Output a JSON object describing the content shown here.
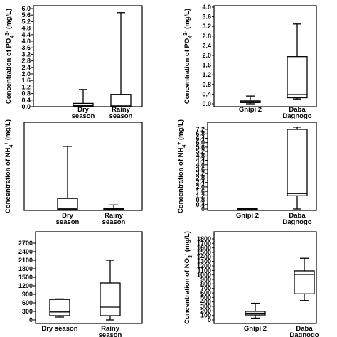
{
  "chart_data": [
    {
      "type": "box",
      "panel": "top-left",
      "ylabel": "Concentration of PO4 3- (mg/L)",
      "ylabel_parts": [
        "Concentration of PO",
        "4",
        "3-",
        " (mg/L)"
      ],
      "ylim": [
        0,
        6.0
      ],
      "ticks": [
        "0.0",
        "0.4",
        "0.8",
        "1.2",
        "1.6",
        "2.0",
        "2.4",
        "2.8",
        "3.2",
        "3.6",
        "4.0",
        "4.4",
        "4.8",
        "5.2",
        "5.6",
        "6.0"
      ],
      "categories": [
        [
          "Dry",
          "season"
        ],
        [
          "Rainy",
          "season"
        ]
      ],
      "boxes": [
        {
          "min": 0.0,
          "q1": 0.05,
          "median": 0.1,
          "q3": 0.2,
          "max": 1.05
        },
        {
          "min": 0.0,
          "q1": 0.0,
          "median": 0.05,
          "q3": 0.75,
          "max": 5.75
        }
      ]
    },
    {
      "type": "box",
      "panel": "top-right",
      "ylabel": "Concentration of PO4 3- (mg/L)",
      "ylabel_parts": [
        "Concentration of PO",
        "4",
        "3-",
        " (mg/L)"
      ],
      "ylim": [
        0,
        4.0
      ],
      "ticks": [
        "0.0",
        "0.4",
        "0.8",
        "1.2",
        "1.6",
        "2.0",
        "2.4",
        "2.8",
        "3.2",
        "3.6",
        "4.0"
      ],
      "categories": [
        [
          "Gnipi 2"
        ],
        [
          "Daba",
          "Dagnogo"
        ]
      ],
      "boxes": [
        {
          "min": 0.0,
          "q1": 0.05,
          "median": 0.08,
          "q3": 0.12,
          "max": 0.32
        },
        {
          "min": 0.2,
          "q1": 0.25,
          "median": 0.38,
          "q3": 1.95,
          "max": 3.3
        }
      ]
    },
    {
      "type": "box",
      "panel": "middle-left",
      "ylabel": "Concentration of NH4 + (mg/L)",
      "ylabel_parts": [
        "Concentration of NH",
        "4",
        "+",
        " (mg/L)"
      ],
      "ylim": [
        0,
        20
      ],
      "ticks": [],
      "categories": [
        [
          "Dry",
          "season"
        ],
        [
          "Rainy",
          "season"
        ]
      ],
      "boxes": [
        {
          "min": 0.0,
          "q1": 0.0,
          "median": 0.2,
          "q3": 2.6,
          "max": 14.6
        },
        {
          "min": 0.0,
          "q1": 0.05,
          "median": 0.15,
          "q3": 0.3,
          "max": 1.1
        }
      ]
    },
    {
      "type": "box",
      "panel": "middle-right",
      "ylabel": "Concentration of NH4 + (mg/L)",
      "ylabel_parts": [
        "Concentration of NH",
        "4",
        "+",
        " (mg/L)"
      ],
      "ylim": [
        0,
        7.2
      ],
      "ticks": [
        "0",
        "0.4",
        "0.8",
        "1.2",
        "1.6",
        "2.0",
        "2.4",
        "2.8",
        "3.2",
        "3.6",
        "4.0",
        "4.4",
        "4.8",
        "5.2",
        "5.6",
        "6.0",
        "6.4",
        "6.8",
        "7.2"
      ],
      "tick_labels": [
        "0",
        "0.4",
        "0.8",
        "1.2",
        "1.6",
        "2.0",
        "2.4",
        "2.8",
        "3.2",
        "3.6",
        "4.0",
        "4.4",
        "4.8",
        "5.2",
        "5.6",
        "6.0",
        "6.4",
        "6.8",
        "7.2"
      ],
      "categories": [
        [
          "Gnipi 2"
        ],
        [
          "Daba",
          "Dagnogo"
        ]
      ],
      "boxes": [
        {
          "min": 0.0,
          "q1": 0.0,
          "median": 0.02,
          "q3": 0.04,
          "max": 0.06
        },
        {
          "min": 0.0,
          "q1": 1.2,
          "median": 1.4,
          "q3": 7.2,
          "max": 7.4
        }
      ]
    },
    {
      "type": "box",
      "panel": "bottom-left",
      "ylabel": "",
      "ylim": [
        0,
        2850
      ],
      "ticks": [
        "0",
        "300",
        "600",
        "900",
        "1200",
        "1500",
        "1800",
        "2100",
        "2400",
        "2700"
      ],
      "categories": [
        [
          "Dry season"
        ],
        [
          "Rainy",
          "season"
        ]
      ],
      "boxes": [
        {
          "min": 100,
          "q1": 150,
          "median": 280,
          "q3": 720,
          "max": 740
        },
        {
          "min": 0,
          "q1": 150,
          "median": 450,
          "q3": 1300,
          "max": 2100
        }
      ]
    },
    {
      "type": "box",
      "panel": "bottom-right",
      "ylabel": "Concentration of NO3 - (mg/L)",
      "ylabel_parts": [
        "Concentration of NO",
        "3",
        "-",
        " (mg/L)"
      ],
      "ylim": [
        0,
        1800
      ],
      "ticks": [
        "0",
        "100",
        "200",
        "300",
        "400",
        "500",
        "600",
        "700",
        "800",
        "900",
        "1000",
        "1100",
        "1200",
        "1300",
        "1400",
        "1500",
        "1600",
        "1700",
        "1800"
      ],
      "tick_labels": [
        "0",
        "100",
        "200",
        "300",
        "400",
        "500",
        "600",
        "700",
        "800",
        "900",
        "1000",
        "1100",
        "1200",
        "1300",
        "1400",
        "1500",
        "1600",
        "1700",
        "1800"
      ],
      "categories": [
        [
          "Gnipi 2"
        ],
        [
          "Daba",
          "Dagnogo"
        ]
      ],
      "boxes": [
        {
          "min": 40,
          "q1": 110,
          "median": 150,
          "q3": 190,
          "max": 370
        },
        {
          "min": 430,
          "q1": 580,
          "median": 1010,
          "q3": 1090,
          "max": 1370
        }
      ]
    }
  ]
}
